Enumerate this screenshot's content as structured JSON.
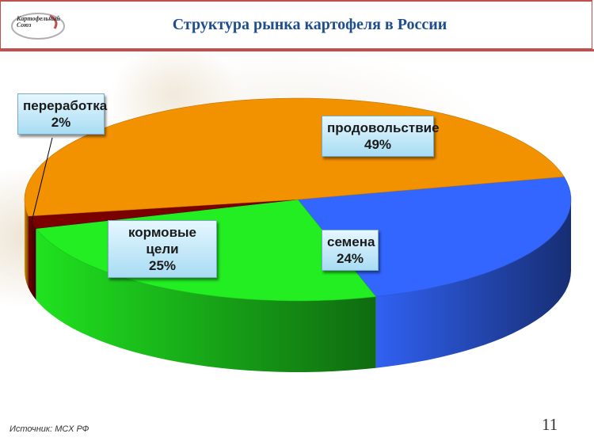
{
  "header": {
    "title": "Структура рынка картофеля в России",
    "logo_text": "Картофельный Союз"
  },
  "chart_data": {
    "type": "pie",
    "title": "Структура рынка картофеля в России",
    "series": [
      {
        "name": "продовольствие",
        "label": "49%",
        "value": 49,
        "color": "#f39200"
      },
      {
        "name": "семена",
        "label": "24%",
        "value": 24,
        "color": "#3366ff"
      },
      {
        "name": "кормовые цели",
        "label": "25%",
        "value": 25,
        "color": "#22ee22"
      },
      {
        "name": "переработка",
        "label": "2%",
        "value": 2,
        "color": "#7a0000"
      }
    ],
    "three_d": true,
    "legend": "data labels"
  },
  "footer": {
    "source": "Источник: МСХ РФ",
    "page_number": "11"
  }
}
